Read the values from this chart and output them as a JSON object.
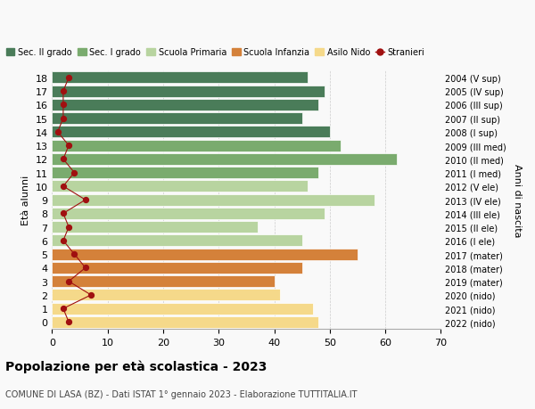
{
  "ages": [
    18,
    17,
    16,
    15,
    14,
    13,
    12,
    11,
    10,
    9,
    8,
    7,
    6,
    5,
    4,
    3,
    2,
    1,
    0
  ],
  "years": [
    "2004 (V sup)",
    "2005 (IV sup)",
    "2006 (III sup)",
    "2007 (II sup)",
    "2008 (I sup)",
    "2009 (III med)",
    "2010 (II med)",
    "2011 (I med)",
    "2012 (V ele)",
    "2013 (IV ele)",
    "2014 (III ele)",
    "2015 (II ele)",
    "2016 (I ele)",
    "2017 (mater)",
    "2018 (mater)",
    "2019 (mater)",
    "2020 (nido)",
    "2021 (nido)",
    "2022 (nido)"
  ],
  "bar_values": [
    46,
    49,
    48,
    45,
    50,
    52,
    62,
    48,
    46,
    58,
    49,
    37,
    45,
    55,
    45,
    40,
    41,
    47,
    48
  ],
  "bar_colors": [
    "#4a7c59",
    "#4a7c59",
    "#4a7c59",
    "#4a7c59",
    "#4a7c59",
    "#7aab6e",
    "#7aab6e",
    "#7aab6e",
    "#b8d4a0",
    "#b8d4a0",
    "#b8d4a0",
    "#b8d4a0",
    "#b8d4a0",
    "#d4813a",
    "#d4813a",
    "#d4813a",
    "#f5d98a",
    "#f5d98a",
    "#f5d98a"
  ],
  "stranieri_values": [
    3,
    2,
    2,
    2,
    1,
    3,
    2,
    4,
    2,
    6,
    2,
    3,
    2,
    4,
    6,
    3,
    7,
    2,
    3
  ],
  "legend_labels": [
    "Sec. II grado",
    "Sec. I grado",
    "Scuola Primaria",
    "Scuola Infanzia",
    "Asilo Nido",
    "Stranieri"
  ],
  "legend_colors": [
    "#4a7c59",
    "#7aab6e",
    "#b8d4a0",
    "#d4813a",
    "#f5d98a",
    "#a01010"
  ],
  "title_bold": "Popolazione per età scolastica - 2023",
  "subtitle": "COMUNE DI LASA (BZ) - Dati ISTAT 1° gennaio 2023 - Elaborazione TUTTITALIA.IT",
  "ylabel_left": "Età alunni",
  "ylabel_right": "Anni di nascita",
  "xlim": [
    0,
    70
  ],
  "bg_color": "#f9f9f9",
  "grid_color": "#cccccc"
}
